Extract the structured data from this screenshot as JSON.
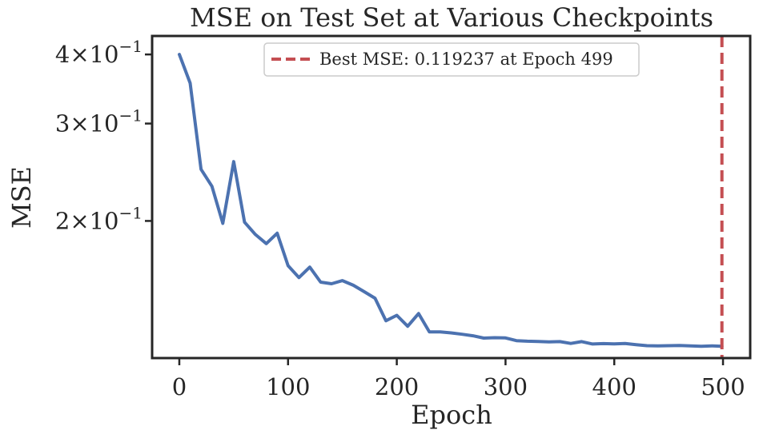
{
  "chart_data": {
    "type": "line",
    "title": "MSE on Test Set at Various Checkpoints",
    "xlabel": "Epoch",
    "ylabel": "MSE",
    "xlim": [
      -25,
      525
    ],
    "ylim": [
      0.113,
      0.432
    ],
    "yscale": "log",
    "grid": false,
    "legend_position": "top-center",
    "x_ticks": [
      0,
      100,
      200,
      300,
      400,
      500
    ],
    "y_ticks": [
      {
        "value": 0.4,
        "mantissa": "4",
        "exponent": "−1"
      },
      {
        "value": 0.3,
        "mantissa": "3",
        "exponent": "−1"
      },
      {
        "value": 0.2,
        "mantissa": "2",
        "exponent": "−1"
      }
    ],
    "series": [
      {
        "color": "#4c72b0",
        "x": [
          0,
          10,
          20,
          30,
          40,
          50,
          60,
          70,
          80,
          90,
          100,
          110,
          120,
          130,
          140,
          150,
          160,
          170,
          180,
          190,
          200,
          210,
          220,
          230,
          240,
          250,
          260,
          270,
          280,
          290,
          300,
          310,
          320,
          330,
          340,
          350,
          360,
          370,
          380,
          390,
          400,
          410,
          420,
          430,
          440,
          450,
          460,
          470,
          480,
          490,
          499
        ],
        "y": [
          0.4,
          0.355,
          0.248,
          0.231,
          0.198,
          0.256,
          0.199,
          0.189,
          0.182,
          0.19,
          0.166,
          0.158,
          0.165,
          0.155,
          0.154,
          0.156,
          0.153,
          0.149,
          0.145,
          0.132,
          0.135,
          0.129,
          0.136,
          0.126,
          0.126,
          0.1255,
          0.1248,
          0.124,
          0.1228,
          0.123,
          0.1229,
          0.1215,
          0.1212,
          0.1211,
          0.1209,
          0.121,
          0.1201,
          0.121,
          0.1198,
          0.12,
          0.1199,
          0.1201,
          0.1195,
          0.119,
          0.1189,
          0.119,
          0.1191,
          0.1189,
          0.1187,
          0.1189,
          0.1187
        ]
      }
    ],
    "reference_line": {
      "x": 499,
      "color": "#c44e52",
      "style": "dashed",
      "label": "Best MSE: 0.119237 at Epoch 499"
    }
  }
}
